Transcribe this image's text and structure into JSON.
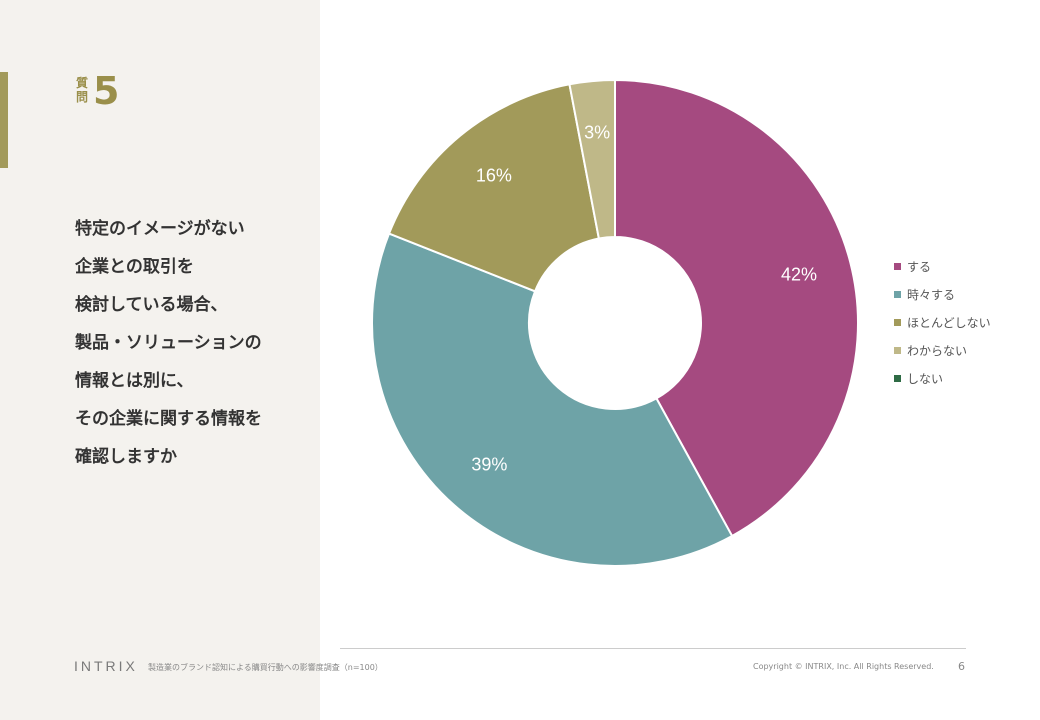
{
  "question": {
    "kanji_top": "質",
    "kanji_bottom": "問",
    "number": "5",
    "lines": [
      "特定のイメージがない",
      "企業との取引を",
      "検討している場合、",
      "製品・ソリューションの",
      "情報とは別に、",
      "その企業に関する情報を",
      "確認しますか"
    ]
  },
  "chart_data": {
    "type": "pie",
    "donut": true,
    "categories": [
      "する",
      "時々する",
      "ほとんどしない",
      "わからない",
      "しない"
    ],
    "values": [
      42,
      39,
      16,
      3,
      0
    ],
    "labels": [
      "42%",
      "39%",
      "16%",
      "3%",
      ""
    ],
    "colors": [
      "#a54a80",
      "#6ea3a7",
      "#a29a5a",
      "#bfb888",
      "#2e6b45"
    ],
    "label_colors": [
      "#ffffff",
      "#ffffff",
      "#ffffff",
      "#ffffff",
      "#ffffff"
    ],
    "legend_position": "right",
    "unit": "%"
  },
  "footer": {
    "logo": "INTRIX",
    "title": "製造業のブランド認知による購買行動への影響度調査（n=100）",
    "copyright": "Copyright © INTRIX, Inc. All Rights Reserved.",
    "page": "6"
  }
}
